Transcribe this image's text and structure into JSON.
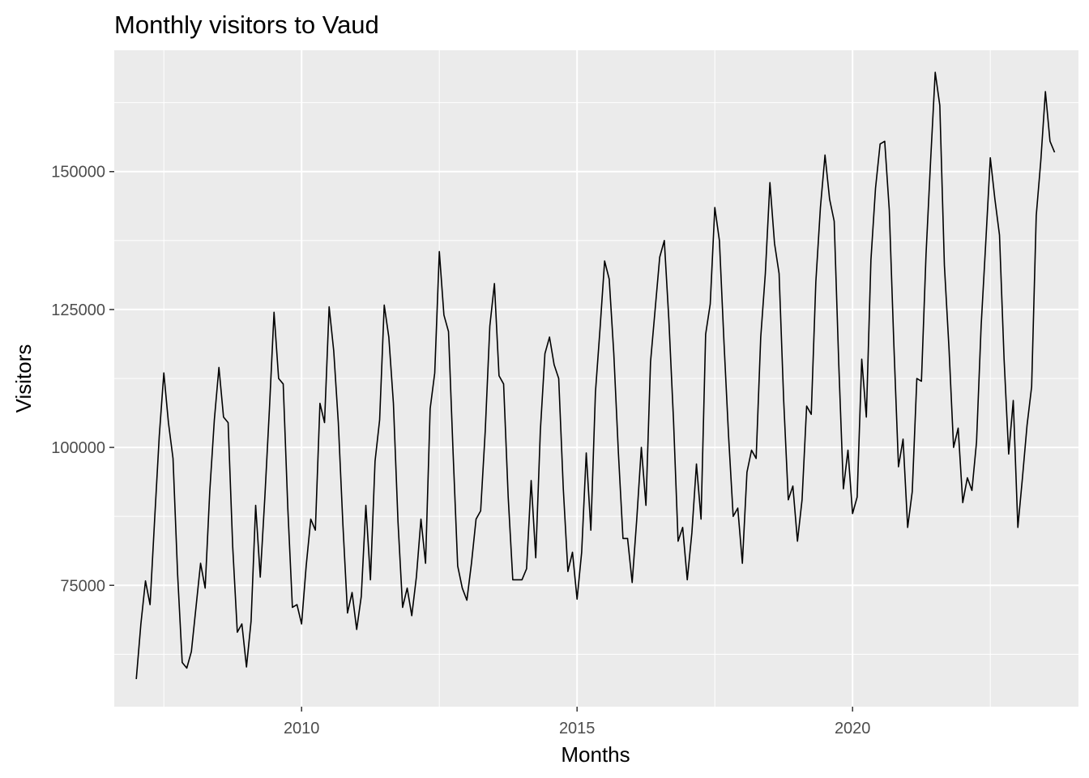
{
  "chart_data": {
    "type": "line",
    "title": "Monthly visitors to Vaud",
    "xlabel": "Months",
    "ylabel": "Visitors",
    "xlim": [
      2006.6,
      2024.1
    ],
    "ylim": [
      53000,
      172000
    ],
    "x_ticks": [
      2010,
      2015,
      2020
    ],
    "x_tick_labels": [
      "2010",
      "2015",
      "2020"
    ],
    "x_minor_ticks": [
      2007.5,
      2012.5,
      2017.5,
      2022.5
    ],
    "y_ticks": [
      75000,
      100000,
      125000,
      150000
    ],
    "y_tick_labels": [
      "75000",
      "100000",
      "125000",
      "150000"
    ],
    "y_minor_ticks": [
      62500,
      87500,
      112500,
      137500,
      162500
    ],
    "grid": true,
    "background": "#ebebeb",
    "grid_color": "#ffffff",
    "line_color": "#000000",
    "series": [
      {
        "start_year": 2007,
        "start_month": 1,
        "values": [
          58000,
          68000,
          75800,
          71500,
          87000,
          102000,
          113500,
          104500,
          98000,
          77000,
          61000,
          60000,
          63000,
          71000,
          79000,
          74500,
          92000,
          105000,
          114500,
          105500,
          104500,
          82000,
          66500,
          68000,
          60200,
          68500,
          89500,
          76500,
          91000,
          107000,
          124500,
          112500,
          111500,
          89000,
          71000,
          71500,
          68000,
          78500,
          87000,
          85000,
          108000,
          104500,
          125500,
          117500,
          104500,
          86000,
          70000,
          73700,
          67000,
          73000,
          89500,
          76000,
          97500,
          105000,
          125800,
          120000,
          108000,
          86500,
          71000,
          74500,
          69500,
          76500,
          87000,
          79000,
          107000,
          113500,
          135500,
          124000,
          121000,
          99000,
          78500,
          74500,
          72300,
          79000,
          87000,
          88500,
          103000,
          122000,
          129700,
          113000,
          111500,
          91000,
          76000,
          76000,
          76000,
          78000,
          94000,
          80000,
          103000,
          117000,
          120000,
          115000,
          112500,
          92500,
          77500,
          81000,
          72500,
          81000,
          99000,
          85000,
          110000,
          121500,
          133800,
          130500,
          117000,
          99000,
          83500,
          83500,
          75500,
          87000,
          100000,
          89500,
          115500,
          125000,
          134500,
          137500,
          123000,
          105000,
          83000,
          85500,
          76000,
          84500,
          97000,
          87000,
          120500,
          126000,
          143500,
          137500,
          119000,
          102000,
          87500,
          89000,
          79000,
          95500,
          99500,
          98000,
          120000,
          131500,
          148000,
          137000,
          131500,
          108500,
          90500,
          93000,
          83000,
          90500,
          107500,
          106000,
          130000,
          143500,
          153000,
          145000,
          141000,
          115000,
          92500,
          99500,
          88000,
          91000,
          116000,
          105500,
          134000,
          147000,
          155000,
          155500,
          143000,
          118500,
          96500,
          101500,
          85500,
          92000,
          112500,
          112000,
          135000,
          152000,
          168000,
          162000,
          133000,
          118000,
          100000,
          103500,
          90000,
          94500,
          92200,
          101000,
          122000,
          137000,
          152500,
          145000,
          138500,
          116000,
          98800,
          108500,
          85500,
          94500,
          104000,
          111000,
          142000,
          152000,
          164500,
          155500,
          153500
        ]
      }
    ]
  }
}
